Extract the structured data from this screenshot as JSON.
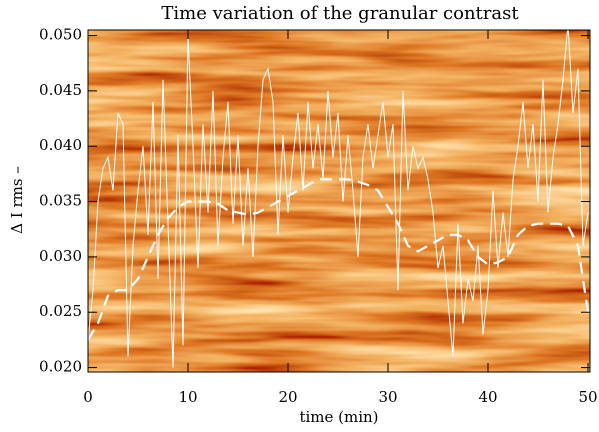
{
  "chart_data": {
    "type": "line",
    "title": "Time variation of the granular contrast",
    "x_label": "time (min)",
    "y_label": "Δ I rms –",
    "xlim": [
      0,
      50.2
    ],
    "ylim": [
      0.0196,
      0.0505
    ],
    "xticks": [
      0,
      10,
      20,
      30,
      40,
      50
    ],
    "yticks": [
      {
        "value": 0.02,
        "label": "0.020"
      },
      0.025,
      {
        "value": 0.03,
        "label": "0.030"
      },
      0.035,
      {
        "value": 0.04,
        "label": "0.040"
      },
      0.045,
      {
        "value": 0.05,
        "label": "0.050"
      }
    ],
    "series": [
      {
        "color": "#ffffff",
        "style": "solid",
        "x": [
          0,
          0.5,
          1,
          1.5,
          2,
          2.5,
          3,
          3.5,
          4,
          4.5,
          5,
          5.5,
          6,
          6.5,
          7,
          7.5,
          8,
          8.5,
          9,
          9.5,
          10,
          10.5,
          11,
          11.5,
          12,
          12.5,
          13,
          13.5,
          14,
          14.5,
          15,
          15.5,
          16,
          16.5,
          17,
          17.5,
          18,
          18.5,
          19,
          19.5,
          20,
          20.5,
          21,
          21.5,
          22,
          22.5,
          23,
          23.5,
          24,
          24.5,
          25,
          25.5,
          26,
          26.5,
          27,
          27.5,
          28,
          28.5,
          29,
          29.5,
          30,
          30.5,
          31,
          31.5,
          32,
          32.5,
          33,
          33.5,
          34,
          34.5,
          35,
          35.5,
          36,
          36.5,
          37,
          37.5,
          38,
          38.5,
          39,
          39.5,
          40,
          40.5,
          41,
          41.5,
          42,
          42.5,
          43,
          43.5,
          44,
          44.5,
          45,
          45.5,
          46,
          46.5,
          47,
          47.5,
          48,
          48.5,
          49,
          49.5,
          50
        ],
        "values": [
          0.0225,
          0.027,
          0.035,
          0.038,
          0.039,
          0.036,
          0.043,
          0.042,
          0.021,
          0.031,
          0.036,
          0.04,
          0.032,
          0.044,
          0.028,
          0.046,
          0.033,
          0.02,
          0.041,
          0.022,
          0.05,
          0.04,
          0.029,
          0.042,
          0.034,
          0.045,
          0.031,
          0.039,
          0.044,
          0.033,
          0.041,
          0.031,
          0.038,
          0.03,
          0.04,
          0.046,
          0.047,
          0.044,
          0.032,
          0.041,
          0.034,
          0.039,
          0.043,
          0.036,
          0.044,
          0.038,
          0.042,
          0.037,
          0.045,
          0.039,
          0.043,
          0.035,
          0.041,
          0.036,
          0.03,
          0.039,
          0.042,
          0.038,
          0.041,
          0.044,
          0.039,
          0.042,
          0.027,
          0.045,
          0.036,
          0.04,
          0.038,
          0.039,
          0.037,
          0.034,
          0.029,
          0.031,
          0.026,
          0.021,
          0.033,
          0.024,
          0.028,
          0.026,
          0.031,
          0.023,
          0.027,
          0.036,
          0.029,
          0.034,
          0.03,
          0.037,
          0.04,
          0.044,
          0.038,
          0.042,
          0.035,
          0.046,
          0.034,
          0.039,
          0.042,
          0.046,
          0.051,
          0.043,
          0.047,
          0.031,
          0.034
        ]
      },
      {
        "color": "#ffffff",
        "style": "dashed",
        "x": [
          0,
          1,
          2,
          3,
          4,
          5,
          6,
          7,
          8,
          9,
          10,
          11,
          12,
          13,
          14,
          15,
          16,
          17,
          18,
          19,
          20,
          21,
          22,
          23,
          24,
          25,
          26,
          27,
          28,
          29,
          30,
          31,
          32,
          33,
          34,
          35,
          36,
          37,
          38,
          39,
          40,
          41,
          42,
          43,
          44,
          45,
          46,
          47,
          48,
          49,
          50
        ],
        "values": [
          0.0225,
          0.024,
          0.0265,
          0.027,
          0.027,
          0.028,
          0.03,
          0.032,
          0.0335,
          0.0345,
          0.035,
          0.035,
          0.035,
          0.0348,
          0.0342,
          0.034,
          0.0338,
          0.034,
          0.0345,
          0.035,
          0.0355,
          0.036,
          0.0365,
          0.037,
          0.037,
          0.037,
          0.037,
          0.0368,
          0.0365,
          0.036,
          0.0345,
          0.033,
          0.031,
          0.0305,
          0.031,
          0.0315,
          0.032,
          0.032,
          0.0315,
          0.03,
          0.0293,
          0.0295,
          0.03,
          0.032,
          0.0328,
          0.033,
          0.033,
          0.033,
          0.0328,
          0.031,
          0.025
        ]
      }
    ]
  }
}
